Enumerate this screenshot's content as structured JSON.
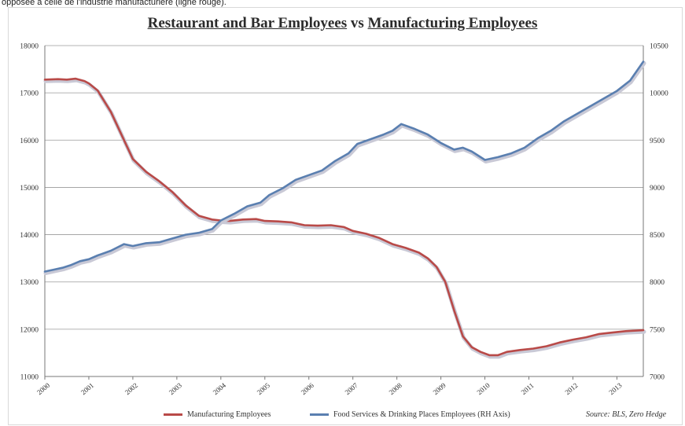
{
  "page": {
    "top_caption": "opposée à celle de l'industrie manufacturière (ligne rouge)."
  },
  "chart_data": {
    "type": "line",
    "title_part1": "Restaurant and Bar Employees",
    "title_part2": " vs ",
    "title_part3": "Manufacturing Employees",
    "source": "Source: BLS, Zero Hedge",
    "left_axis": {
      "ylim": [
        11000,
        18000
      ],
      "ticks": [
        "11000",
        "12000",
        "13000",
        "14000",
        "15000",
        "16000",
        "17000",
        "18000"
      ]
    },
    "right_axis": {
      "ylim": [
        7000,
        10500
      ],
      "ticks": [
        "7000",
        "7500",
        "8000",
        "8500",
        "9000",
        "9500",
        "10000",
        "10500"
      ]
    },
    "x_axis": {
      "xlim": [
        2000,
        2013.6
      ],
      "ticks": [
        "2000",
        "2001",
        "2002",
        "2003",
        "2004",
        "2005",
        "2006",
        "2007",
        "2008",
        "2009",
        "2010",
        "2011",
        "2012",
        "2013"
      ]
    },
    "grid": true,
    "legend_position": "bottom",
    "series": [
      {
        "name": "Manufacturing Employees",
        "axis": "left",
        "color": "#b94a48",
        "x": [
          2000,
          2000.3,
          2000.5,
          2000.7,
          2000.9,
          2001.0,
          2001.2,
          2001.5,
          2001.8,
          2002.0,
          2002.3,
          2002.6,
          2002.9,
          2003.2,
          2003.5,
          2003.8,
          2004.0,
          2004.2,
          2004.5,
          2004.8,
          2005.0,
          2005.3,
          2005.6,
          2005.9,
          2006.2,
          2006.5,
          2006.8,
          2007.0,
          2007.3,
          2007.6,
          2007.9,
          2008.2,
          2008.5,
          2008.7,
          2008.9,
          2009.1,
          2009.3,
          2009.5,
          2009.7,
          2009.9,
          2010.1,
          2010.3,
          2010.5,
          2010.8,
          2011.1,
          2011.4,
          2011.7,
          2012.0,
          2012.3,
          2012.6,
          2012.9,
          2013.2,
          2013.6
        ],
        "values": [
          17280,
          17290,
          17280,
          17300,
          17250,
          17200,
          17050,
          16600,
          16000,
          15600,
          15330,
          15130,
          14900,
          14620,
          14400,
          14320,
          14300,
          14290,
          14320,
          14330,
          14290,
          14280,
          14260,
          14200,
          14190,
          14200,
          14160,
          14080,
          14020,
          13930,
          13800,
          13720,
          13620,
          13500,
          13320,
          13000,
          12400,
          11850,
          11620,
          11520,
          11450,
          11450,
          11520,
          11560,
          11590,
          11640,
          11720,
          11780,
          11830,
          11900,
          11930,
          11960,
          11980
        ]
      },
      {
        "name": "Food Services & Drinking Places Employees (RH Axis)",
        "axis": "right",
        "color": "#5a7fb0",
        "x": [
          2000,
          2000.2,
          2000.4,
          2000.6,
          2000.8,
          2001.0,
          2001.2,
          2001.5,
          2001.8,
          2002.0,
          2002.3,
          2002.6,
          2002.9,
          2003.2,
          2003.5,
          2003.8,
          2004.0,
          2004.3,
          2004.6,
          2004.9,
          2005.1,
          2005.4,
          2005.7,
          2006.0,
          2006.3,
          2006.6,
          2006.9,
          2007.1,
          2007.4,
          2007.7,
          2007.9,
          2008.1,
          2008.4,
          2008.7,
          2009.0,
          2009.3,
          2009.5,
          2009.7,
          2009.9,
          2010.0,
          2010.3,
          2010.6,
          2010.9,
          2011.2,
          2011.5,
          2011.8,
          2012.1,
          2012.4,
          2012.7,
          2013.0,
          2013.3,
          2013.6
        ],
        "values": [
          8110,
          8130,
          8150,
          8180,
          8220,
          8240,
          8280,
          8330,
          8400,
          8380,
          8410,
          8420,
          8460,
          8500,
          8520,
          8560,
          8650,
          8720,
          8800,
          8840,
          8920,
          8990,
          9080,
          9130,
          9180,
          9280,
          9360,
          9460,
          9510,
          9560,
          9600,
          9670,
          9620,
          9560,
          9470,
          9400,
          9420,
          9380,
          9320,
          9290,
          9320,
          9360,
          9420,
          9520,
          9600,
          9700,
          9780,
          9860,
          9940,
          10020,
          10130,
          10330
        ]
      }
    ]
  }
}
